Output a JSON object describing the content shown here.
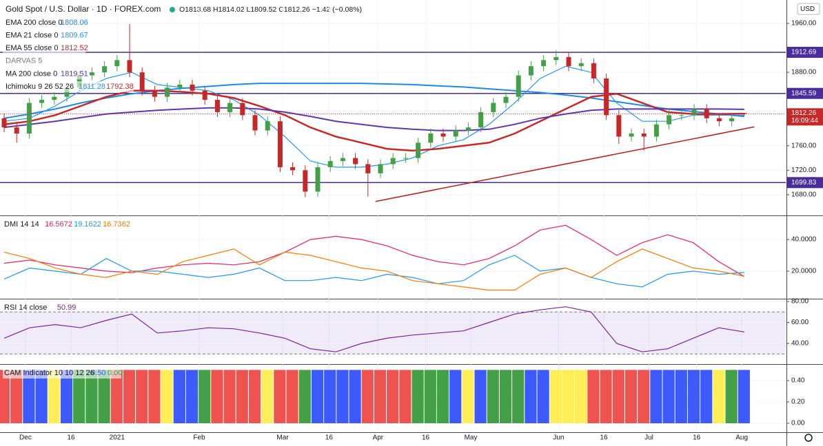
{
  "chart_data": [
    {
      "type": "candlestick",
      "title": "Gold Spot / U.S. Dollar · 1D · FOREX.com",
      "subtitle": "O1813.68 H1814.02 L1809.52 C1812.26 −1.42 (−0.08%)",
      "currency": "USD",
      "up_color": "#43a047",
      "down_color": "#c62828",
      "open": [
        1805,
        1790,
        1780,
        1830,
        1835,
        1840,
        1855,
        1875,
        1880,
        1890,
        1900,
        1880,
        1850,
        1840,
        1855,
        1860,
        1850,
        1835,
        1815,
        1830,
        1810,
        1785,
        1800,
        1725,
        1720,
        1685,
        1725,
        1735,
        1740,
        1730,
        1715,
        1730,
        1740,
        1740,
        1765,
        1780,
        1775,
        1785,
        1790,
        1815,
        1830,
        1840,
        1875,
        1890,
        1900,
        1905,
        1890,
        1895,
        1870,
        1810,
        1775,
        1780,
        1775,
        1795,
        1810,
        1810,
        1820,
        1805,
        1800,
        1813.68
      ],
      "high": [
        1813,
        1798,
        1838,
        1843,
        1848,
        1863,
        1883,
        1888,
        1898,
        1908,
        1959,
        1888,
        1858,
        1863,
        1868,
        1868,
        1858,
        1843,
        1838,
        1838,
        1818,
        1808,
        1808,
        1733,
        1728,
        1733,
        1743,
        1748,
        1748,
        1738,
        1738,
        1748,
        1748,
        1773,
        1788,
        1788,
        1793,
        1798,
        1823,
        1838,
        1848,
        1883,
        1898,
        1908,
        1916,
        1913,
        1903,
        1903,
        1878,
        1818,
        1788,
        1788,
        1803,
        1818,
        1818,
        1828,
        1828,
        1813,
        1813,
        1814.02
      ],
      "low": [
        1782,
        1765,
        1772,
        1822,
        1827,
        1832,
        1847,
        1867,
        1872,
        1882,
        1872,
        1842,
        1832,
        1832,
        1847,
        1842,
        1827,
        1807,
        1807,
        1802,
        1777,
        1777,
        1717,
        1712,
        1676,
        1677,
        1717,
        1727,
        1722,
        1677,
        1707,
        1722,
        1732,
        1732,
        1757,
        1767,
        1767,
        1777,
        1782,
        1807,
        1822,
        1832,
        1867,
        1882,
        1892,
        1882,
        1882,
        1862,
        1802,
        1763,
        1767,
        1752,
        1767,
        1787,
        1802,
        1802,
        1797,
        1792,
        1792,
        1809.52
      ],
      "close": [
        1790,
        1780,
        1830,
        1835,
        1840,
        1855,
        1875,
        1880,
        1890,
        1900,
        1880,
        1850,
        1840,
        1855,
        1860,
        1850,
        1835,
        1815,
        1830,
        1810,
        1785,
        1800,
        1725,
        1720,
        1685,
        1725,
        1735,
        1740,
        1730,
        1715,
        1730,
        1740,
        1740,
        1765,
        1780,
        1775,
        1785,
        1790,
        1815,
        1830,
        1840,
        1875,
        1890,
        1900,
        1905,
        1890,
        1895,
        1870,
        1810,
        1775,
        1780,
        1775,
        1795,
        1810,
        1810,
        1820,
        1805,
        1800,
        1805,
        1812.26
      ],
      "ylim": [
        1647.3,
        1998.2
      ],
      "yticks": [
        {
          "value": 1680,
          "label": "1680.00"
        },
        {
          "value": 1720,
          "label": "1720.00"
        },
        {
          "value": 1760,
          "label": "1760.00"
        },
        {
          "value": 1880,
          "label": "1880.00"
        },
        {
          "value": 1960,
          "label": "1960.00"
        }
      ],
      "xticks": [
        {
          "value": 1.7,
          "label": "Dec"
        },
        {
          "value": 5.33,
          "label": "16"
        },
        {
          "value": 9.0,
          "label": "2021"
        },
        {
          "value": 15.55,
          "label": "Feb"
        },
        {
          "value": 22.2,
          "label": "Mar"
        },
        {
          "value": 25.9,
          "label": "16"
        },
        {
          "value": 29.8,
          "label": "Apr"
        },
        {
          "value": 33.6,
          "label": "16"
        },
        {
          "value": 37.2,
          "label": "May"
        },
        {
          "value": 44.2,
          "label": "Jun"
        },
        {
          "value": 47.8,
          "label": "16"
        },
        {
          "value": 51.4,
          "label": "Jul"
        },
        {
          "value": 55.2,
          "label": "16"
        },
        {
          "value": 58.8,
          "label": "Aug"
        }
      ],
      "series": [
        {
          "name": "EMA 200 close 0",
          "color": "#1e88e5",
          "width": 2,
          "values": [
            1805,
            1812,
            1820,
            1830,
            1838,
            1845,
            1850,
            1854,
            1857,
            1860,
            1862,
            1862,
            1862,
            1862,
            1862,
            1861,
            1860,
            1858,
            1856,
            1853,
            1850,
            1847,
            1843,
            1838,
            1832,
            1826,
            1820,
            1816,
            1812,
            1808.06
          ]
        },
        {
          "name": "EMA 21 close 0",
          "color": "#2196f3",
          "width": 1.2,
          "values": [
            1800,
            1805,
            1825,
            1850,
            1870,
            1880,
            1860,
            1855,
            1850,
            1835,
            1810,
            1775,
            1735,
            1725,
            1725,
            1730,
            1740,
            1760,
            1770,
            1795,
            1830,
            1870,
            1890,
            1880,
            1830,
            1800,
            1800,
            1810,
            1810,
            1809.67
          ]
        },
        {
          "name": "EMA 55 close 0",
          "color": "#c62828",
          "width": 2.5,
          "values": [
            1795,
            1800,
            1810,
            1825,
            1840,
            1850,
            1850,
            1848,
            1845,
            1838,
            1825,
            1810,
            1790,
            1775,
            1765,
            1755,
            1752,
            1755,
            1760,
            1765,
            1780,
            1800,
            1820,
            1840,
            1845,
            1830,
            1815,
            1812,
            1812,
            1812.52
          ]
        },
        {
          "name": "MA 200 close 0",
          "color": "#5e35b1",
          "width": 2,
          "values": [
            1790,
            1795,
            1800,
            1806,
            1812,
            1815,
            1818,
            1820,
            1822,
            1822,
            1820,
            1815,
            1808,
            1800,
            1795,
            1790,
            1787,
            1785,
            1785,
            1787,
            1795,
            1805,
            1812,
            1818,
            1820,
            1820,
            1820,
            1820,
            1820,
            1819.51
          ]
        }
      ],
      "darvas": "DARVAS 5",
      "ichimoku": {
        "name": "Ichimoku 9 26 52 26",
        "values": [
          1811.28,
          1792.38
        ]
      },
      "levels": [
        {
          "value": 1912.69,
          "color": "#4a2c9a"
        },
        {
          "value": 1845.59,
          "color": "#4a2c9a"
        },
        {
          "value": 1699.83,
          "color": "#4a2c9a"
        }
      ],
      "last_price": {
        "value": 1812.26,
        "time": "16:09:44",
        "color": "#c62828"
      },
      "trendline": {
        "x": [
          29.6,
          59.8
        ],
        "values": [
          1669,
          1791
        ],
        "color": "#b71c1c"
      }
    },
    {
      "type": "line",
      "title": "DMI 14 14",
      "ylim": [
        3,
        54.8
      ],
      "yticks": [
        {
          "value": 20,
          "label": "20.0000"
        },
        {
          "value": 40,
          "label": "40.0000"
        }
      ],
      "series": [
        {
          "color": "#e91e63",
          "values": [
            25,
            27,
            24,
            22,
            20,
            19,
            22,
            24,
            25,
            24,
            26,
            32,
            40,
            42,
            40,
            36,
            30,
            26,
            24,
            28,
            36,
            46,
            49,
            40,
            30,
            38,
            43,
            38,
            26,
            16.5672
          ]
        },
        {
          "color": "#2196f3",
          "values": [
            15,
            22,
            20,
            18,
            28,
            20,
            20,
            18,
            16,
            18,
            22,
            14,
            14,
            16,
            14,
            18,
            16,
            12,
            14,
            24,
            30,
            20,
            22,
            16,
            12,
            10,
            18,
            20,
            18,
            19.1622
          ]
        },
        {
          "color": "#f57c00",
          "values": [
            32,
            28,
            22,
            18,
            16,
            20,
            18,
            26,
            30,
            34,
            24,
            32,
            30,
            26,
            22,
            20,
            14,
            12,
            10,
            8,
            8,
            18,
            22,
            16,
            26,
            34,
            28,
            22,
            20,
            16.7362
          ]
        }
      ]
    },
    {
      "type": "line",
      "title": "RSI 14 close",
      "ylim": [
        21,
        82
      ],
      "yticks": [
        {
          "value": 40,
          "label": "40.00"
        },
        {
          "value": 60,
          "label": "60.00"
        },
        {
          "value": 80,
          "label": "80.00"
        }
      ],
      "band": [
        30,
        70
      ],
      "band_color": "#7e57c2",
      "series": [
        {
          "color": "#7b1fa2",
          "values": [
            45,
            55,
            58,
            55,
            62,
            68,
            50,
            52,
            55,
            54,
            50,
            45,
            35,
            32,
            40,
            45,
            48,
            50,
            52,
            60,
            68,
            72,
            75,
            70,
            40,
            32,
            35,
            45,
            55,
            50.99
          ]
        }
      ]
    },
    {
      "type": "bar",
      "title": "CAM Indicator 10 10 12 26",
      "legend_values": [
        {
          "value": 0.5,
          "label": "0.50"
        },
        {
          "value": 0,
          "label": "0.00"
        }
      ],
      "ylim": [
        -0.084,
        0.548
      ],
      "yticks": [
        {
          "value": 0,
          "label": "0.00"
        },
        {
          "value": 0.2,
          "label": "0.20"
        },
        {
          "value": 0.4,
          "label": "0.40"
        }
      ],
      "values": [
        0.5,
        0.5,
        0.5,
        0.5,
        0.5,
        0.5,
        0.5,
        0.5,
        0.5,
        0.5,
        0.5,
        0.5,
        0.5,
        0.5,
        0.5,
        0.5,
        0.5,
        0.5,
        0.5,
        0.5,
        0.5,
        0.5,
        0.5,
        0.5,
        0.5,
        0.5,
        0.5,
        0.5,
        0.5,
        0.5,
        0.5,
        0.5,
        0.5,
        0.5,
        0.5,
        0.5,
        0.5,
        0.5,
        0.5,
        0.5,
        0.5,
        0.5,
        0.5,
        0.5,
        0.5,
        0.5,
        0.5,
        0.5,
        0.5,
        0.5,
        0.5,
        0.5,
        0.5,
        0.5,
        0.5,
        0.5,
        0.5,
        0.5,
        0.5,
        0.5
      ],
      "colors": [
        "#ef5350",
        "#ef5350",
        "#3d5afe",
        "#3d5afe",
        "#ffee58",
        "#3d5afe",
        "#43a047",
        "#43a047",
        "#43a047",
        "#ef5350",
        "#ef5350",
        "#ef5350",
        "#ef5350",
        "#ffee58",
        "#3d5afe",
        "#3d5afe",
        "#43a047",
        "#ef5350",
        "#ef5350",
        "#ef5350",
        "#ef5350",
        "#ffee58",
        "#ef5350",
        "#ef5350",
        "#43a047",
        "#3d5afe",
        "#3d5afe",
        "#3d5afe",
        "#3d5afe",
        "#ef5350",
        "#ef5350",
        "#ef5350",
        "#ef5350",
        "#43a047",
        "#43a047",
        "#43a047",
        "#3d5afe",
        "#ffee58",
        "#3d5afe",
        "#43a047",
        "#43a047",
        "#43a047",
        "#3d5afe",
        "#3d5afe",
        "#ffee58",
        "#ffee58",
        "#ffee58",
        "#ef5350",
        "#ef5350",
        "#ef5350",
        "#ef5350",
        "#ef5350",
        "#3d5afe",
        "#3d5afe",
        "#3d5afe",
        "#3d5afe",
        "#3d5afe",
        "#ffee58",
        "#43a047",
        "#3d5afe"
      ]
    }
  ]
}
